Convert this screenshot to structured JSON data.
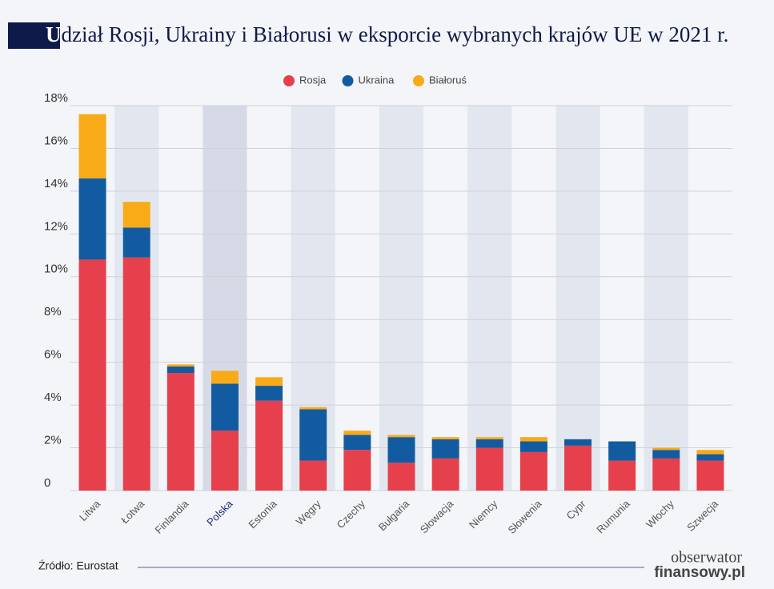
{
  "chart_data": {
    "type": "stacked_bar",
    "title": "Udział Rosji, Ukrainy i Białorusi w eksporcie wybranych krajów UE w 2021 r.",
    "categories": [
      "Litwa",
      "Łotwa",
      "Finlandia",
      "Polska",
      "Estonia",
      "Węgry",
      "Czechy",
      "Bułgaria",
      "Słowacja",
      "Niemcy",
      "Słowenia",
      "Cypr",
      "Rumunia",
      "Włochy",
      "Szwecja"
    ],
    "highlight_category_index": 3,
    "series": [
      {
        "name": "Rosja",
        "color": "#e5404b",
        "values": [
          10.8,
          10.9,
          5.5,
          2.8,
          4.2,
          1.4,
          1.9,
          1.3,
          1.5,
          2.0,
          1.8,
          2.1,
          1.4,
          1.5,
          1.4
        ]
      },
      {
        "name": "Ukraina",
        "color": "#135ba0",
        "values": [
          3.8,
          1.4,
          0.3,
          2.2,
          0.7,
          2.4,
          0.7,
          1.2,
          0.9,
          0.4,
          0.5,
          0.3,
          0.9,
          0.4,
          0.3
        ]
      },
      {
        "name": "Białoruś",
        "color": "#f8aa17",
        "values": [
          3.0,
          1.2,
          0.1,
          0.6,
          0.4,
          0.1,
          0.2,
          0.1,
          0.1,
          0.1,
          0.2,
          0,
          0,
          0.1,
          0.2
        ]
      }
    ],
    "ylim": [
      0,
      18
    ],
    "yticks": [
      0,
      {
        "value": 2,
        "label": "2%"
      },
      {
        "value": 4,
        "label": "4%"
      },
      {
        "value": 6,
        "label": "6%"
      },
      {
        "value": 8,
        "label": "8%"
      },
      {
        "value": 10,
        "label": "10%"
      },
      {
        "value": 12,
        "label": "12%"
      },
      {
        "value": 14,
        "label": "14%"
      },
      {
        "value": 16,
        "label": "16%"
      },
      {
        "value": 18,
        "label": "18%"
      }
    ],
    "grid": true,
    "legend": "top",
    "source": "Źródło: Eurostat",
    "logo": [
      "obserwator",
      "finansowy.pl"
    ]
  }
}
